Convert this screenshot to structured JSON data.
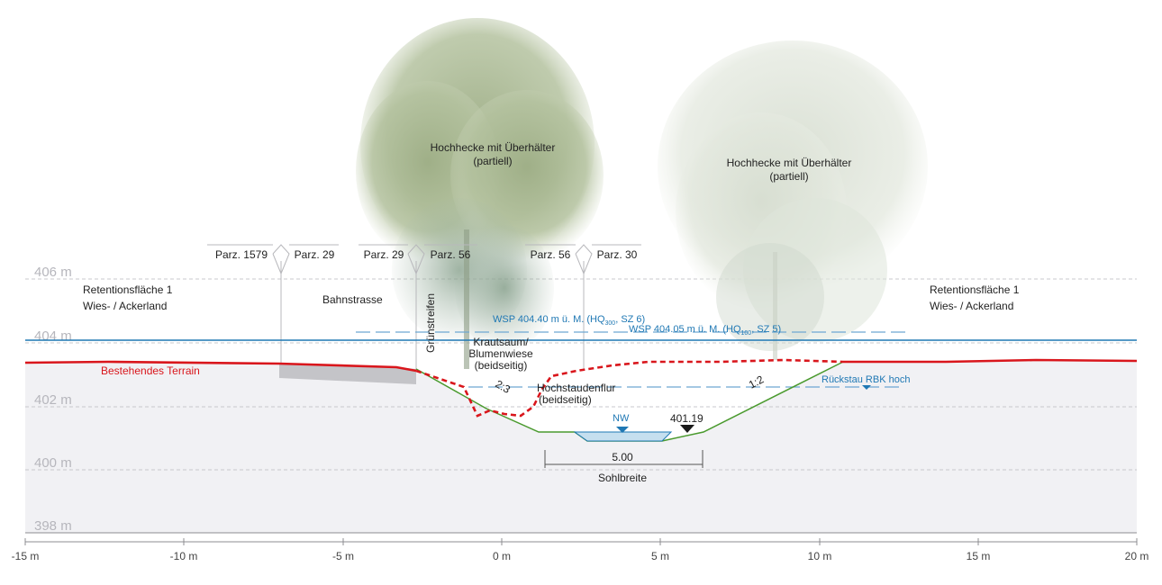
{
  "axes": {
    "x_ticks": [
      "-15 m",
      "-10 m",
      "-5 m",
      "0 m",
      "5 m",
      "10 m",
      "15 m",
      "20 m"
    ],
    "elevation_labels": [
      "406 m",
      "404 m",
      "402 m",
      "400 m",
      "398 m"
    ]
  },
  "labels": {
    "tree_left": [
      "Hochhecke mit Überhälter",
      "(partiell)"
    ],
    "tree_right": [
      "Hochhecke mit Überhälter",
      "(partiell)"
    ],
    "parcels": {
      "p1579": "Parz. 1579",
      "p29_a": "Parz. 29",
      "p29_b": "Parz. 29",
      "p56_a": "Parz. 56",
      "p56_b": "Parz. 56",
      "p30": "Parz. 30"
    },
    "retention_left": [
      "Retentionsfläche 1",
      "Wies- / Ackerland"
    ],
    "retention_right": [
      "Retentionsfläche 1",
      "Wies- / Ackerland"
    ],
    "bahnstrasse": "Bahnstrasse",
    "gruenstreifen": "Grünstreifen",
    "wsp300": {
      "prefix": "WSP 404.40 m ü. M. (HQ",
      "sub": "300",
      "suffix": ", SZ 6)"
    },
    "wsp100": {
      "prefix": "WSP 404.05 m ü. M. (HQ",
      "sub": "100",
      "suffix": ", SZ 5)"
    },
    "krautsaum": [
      "Krautsaum/",
      "Blumenwiese",
      "(beidseitig)"
    ],
    "hochstauden": [
      "Hochstaudenflur",
      "(beidseitig)"
    ],
    "bestehendes": "Bestehendes Terrain",
    "ruckstau": "Rückstau RBK hoch",
    "slope_left": "2:3",
    "slope_right": "1:2",
    "nw": "NW",
    "sohle_elev": "401.19",
    "width": "5.00",
    "sohlbreite": "Sohlbreite"
  },
  "colors": {
    "terrain": "#d9161c",
    "water": "#1f78b4",
    "bank": "#4a9a2e",
    "grid": "#c8c8cc",
    "ground": "#f1f1f4",
    "elev_label": "#b6b6bc"
  }
}
